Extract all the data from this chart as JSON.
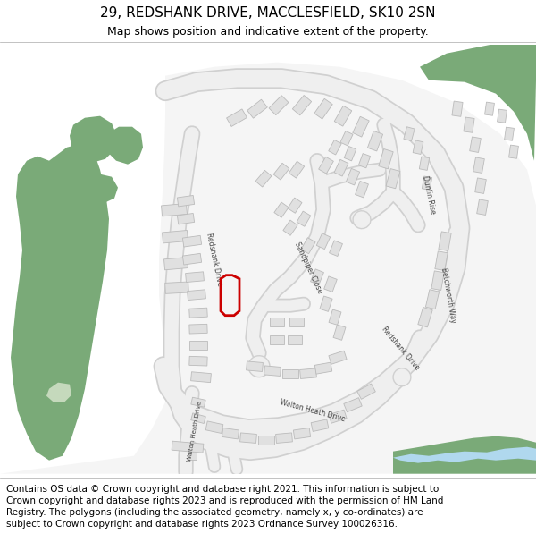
{
  "title_line1": "29, REDSHANK DRIVE, MACCLESFIELD, SK10 2SN",
  "title_line2": "Map shows position and indicative extent of the property.",
  "footer": "Contains OS data © Crown copyright and database right 2021. This information is subject to Crown copyright and database rights 2023 and is reproduced with the permission of HM Land Registry. The polygons (including the associated geometry, namely x, y co-ordinates) are subject to Crown copyright and database rights 2023 Ordnance Survey 100026316.",
  "bg_color": "#c5d9bc",
  "road_color": "#f2f2f2",
  "road_outline_color": "#d0d0d0",
  "building_color": "#e0e0e0",
  "building_outline_color": "#bbbbbb",
  "green_dark": "#7aaa78",
  "highlight_color": "#cc0000",
  "water_color": "#b0d8ee",
  "white_area": "#f5f5f5",
  "title_fontsize": 11,
  "subtitle_fontsize": 9,
  "footer_fontsize": 7.5
}
